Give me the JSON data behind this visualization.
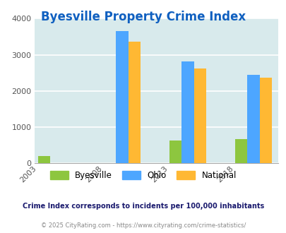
{
  "title": "Byesville Property Crime Index",
  "title_color": "#1060c0",
  "years": [
    "2003",
    "2008",
    "2013",
    "2018"
  ],
  "byesville": [
    200,
    0,
    630,
    670
  ],
  "ohio": [
    0,
    3660,
    2820,
    2440
  ],
  "national": [
    0,
    3360,
    2610,
    2360
  ],
  "bar_colors": {
    "byesville": "#8dc63f",
    "ohio": "#4da6ff",
    "national": "#ffb833"
  },
  "ylim": [
    0,
    4000
  ],
  "yticks": [
    0,
    1000,
    2000,
    3000,
    4000
  ],
  "bg_color": "#d8eaec",
  "grid_color": "#ffffff",
  "legend_labels": [
    "Byesville",
    "Ohio",
    "National"
  ],
  "footnote1": "Crime Index corresponds to incidents per 100,000 inhabitants",
  "footnote2": "© 2025 CityRating.com - https://www.cityrating.com/crime-statistics/",
  "bar_width": 0.28,
  "figsize": [
    4.06,
    3.3
  ],
  "dpi": 100
}
